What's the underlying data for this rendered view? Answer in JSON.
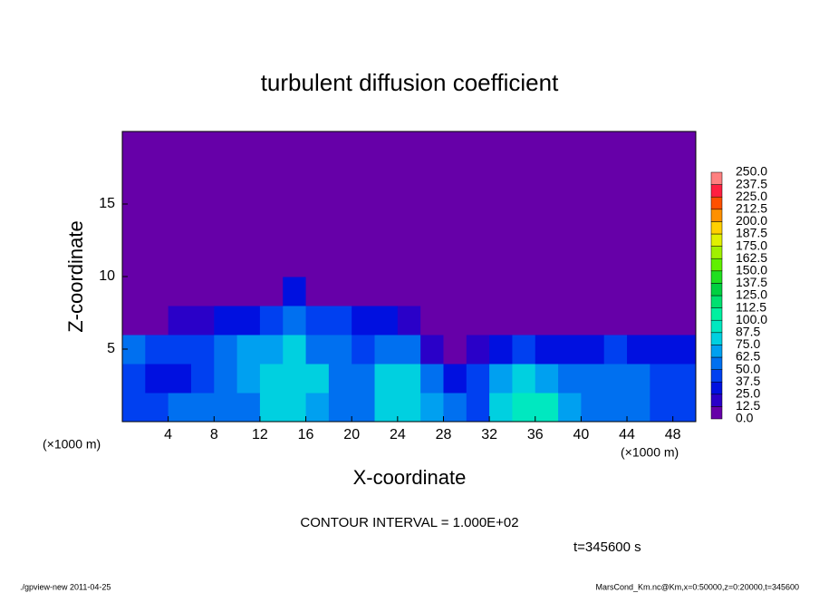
{
  "chart_data": {
    "type": "heatmap",
    "title": "turbulent diffusion coefficient",
    "x_label": "X-coordinate",
    "y_label": "Z-coordinate",
    "x_unit": "(×1000 m)",
    "y_unit": "(×1000 m)",
    "contour_note": "CONTOUR INTERVAL = 1.000E+02",
    "time_label": "t=345600 s",
    "footer_left": "./gpview-new  2011-04-25",
    "footer_right": "MarsCond_Km.nc@Km,x=0:50000,z=0:20000,t=345600",
    "xlim": [
      0,
      50
    ],
    "ylim": [
      0,
      20
    ],
    "xticks": [
      4,
      8,
      12,
      16,
      20,
      24,
      28,
      32,
      36,
      40,
      44,
      48
    ],
    "yticks": [
      5,
      10,
      15
    ],
    "x": [
      1,
      3,
      5,
      7,
      9,
      11,
      13,
      15,
      17,
      19,
      21,
      23,
      25,
      27,
      29,
      31,
      33,
      35,
      37,
      39,
      41,
      43,
      45,
      47,
      49
    ],
    "z": [
      1,
      3,
      5,
      7,
      9,
      11,
      13,
      15,
      17,
      19
    ],
    "values": [
      [
        45,
        40,
        50,
        55,
        50,
        60,
        75,
        80,
        70,
        55,
        50,
        80,
        85,
        70,
        50,
        45,
        75,
        90,
        95,
        70,
        55,
        60,
        50,
        45,
        40
      ],
      [
        40,
        35,
        30,
        45,
        55,
        70,
        80,
        85,
        75,
        60,
        55,
        85,
        75,
        55,
        35,
        40,
        65,
        80,
        70,
        60,
        50,
        55,
        50,
        45,
        40
      ],
      [
        50,
        45,
        40,
        45,
        55,
        65,
        70,
        75,
        60,
        50,
        45,
        60,
        50,
        20,
        10,
        20,
        35,
        40,
        35,
        30,
        30,
        40,
        35,
        30,
        25
      ],
      [
        5,
        10,
        15,
        20,
        25,
        35,
        45,
        50,
        45,
        40,
        35,
        30,
        20,
        5,
        0,
        0,
        0,
        5,
        10,
        5,
        0,
        5,
        5,
        0,
        0
      ],
      [
        0,
        0,
        0,
        0,
        0,
        0,
        10,
        30,
        10,
        0,
        0,
        0,
        0,
        0,
        0,
        0,
        0,
        0,
        0,
        0,
        0,
        0,
        0,
        0,
        0
      ],
      [
        0,
        0,
        0,
        0,
        0,
        0,
        0,
        0,
        0,
        0,
        0,
        0,
        0,
        0,
        0,
        0,
        0,
        0,
        0,
        0,
        0,
        0,
        0,
        0,
        0
      ],
      [
        0,
        0,
        0,
        0,
        0,
        0,
        0,
        0,
        0,
        0,
        0,
        0,
        0,
        0,
        0,
        0,
        0,
        0,
        0,
        0,
        0,
        0,
        0,
        0,
        0
      ],
      [
        0,
        0,
        0,
        0,
        0,
        0,
        0,
        0,
        0,
        0,
        0,
        0,
        0,
        0,
        0,
        0,
        0,
        0,
        0,
        0,
        0,
        0,
        0,
        0,
        0
      ],
      [
        0,
        0,
        0,
        0,
        0,
        0,
        0,
        0,
        0,
        0,
        0,
        0,
        0,
        0,
        0,
        0,
        0,
        0,
        0,
        0,
        0,
        0,
        0,
        0,
        0
      ],
      [
        0,
        0,
        0,
        0,
        0,
        0,
        0,
        0,
        0,
        0,
        0,
        0,
        0,
        0,
        0,
        0,
        0,
        0,
        0,
        0,
        0,
        0,
        0,
        0,
        0
      ]
    ],
    "levels": [
      {
        "value": 0,
        "label": "0.0"
      },
      {
        "value": 12.5,
        "label": "12.5"
      },
      {
        "value": 25,
        "label": "25.0"
      },
      {
        "value": 37.5,
        "label": "37.5"
      },
      {
        "value": 50,
        "label": "50.0"
      },
      {
        "value": 62.5,
        "label": "62.5"
      },
      {
        "value": 75,
        "label": "75.0"
      },
      {
        "value": 87.5,
        "label": "87.5"
      },
      {
        "value": 100,
        "label": "100.0"
      },
      {
        "value": 112.5,
        "label": "112.5"
      },
      {
        "value": 125,
        "label": "125.0"
      },
      {
        "value": 137.5,
        "label": "137.5"
      },
      {
        "value": 150,
        "label": "150.0"
      },
      {
        "value": 162.5,
        "label": "162.5"
      },
      {
        "value": 175,
        "label": "175.0"
      },
      {
        "value": 187.5,
        "label": "187.5"
      },
      {
        "value": 200,
        "label": "200.0"
      },
      {
        "value": 212.5,
        "label": "212.5"
      },
      {
        "value": 225,
        "label": "225.0"
      },
      {
        "value": 237.5,
        "label": "237.5"
      },
      {
        "value": 250,
        "label": "250.0"
      }
    ],
    "colors": [
      "#6600a8",
      "#2a00c8",
      "#0010e0",
      "#0040f0",
      "#0070f0",
      "#00a0f0",
      "#00d0e0",
      "#00e8c0",
      "#00f0a0",
      "#00e070",
      "#00d040",
      "#20e020",
      "#60f000",
      "#a0f000",
      "#e0f000",
      "#ffd000",
      "#ff9000",
      "#ff5000",
      "#ff2040",
      "#ff8080"
    ]
  }
}
